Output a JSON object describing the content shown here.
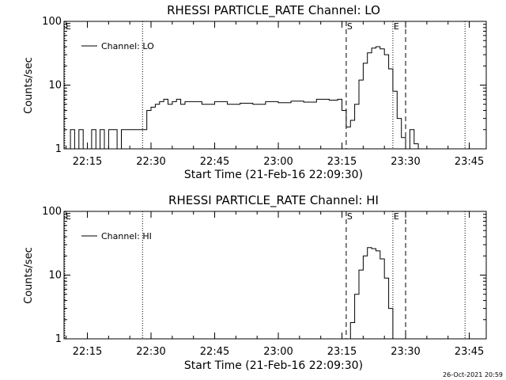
{
  "footer_stamp": "26-Oct-2021 20:59",
  "chart_data": [
    {
      "type": "line",
      "title": "RHESSI PARTICLE_RATE Channel: LO",
      "xlabel": "Start Time (21-Feb-16 22:09:30)",
      "ylabel": "Counts/sec",
      "yscale": "log",
      "ylim": [
        1,
        100
      ],
      "xlim_minutes": [
        22.15,
        23.8
      ],
      "x_tick_labels": [
        "22:15",
        "22:30",
        "22:45",
        "23:00",
        "23:15",
        "23:30",
        "23:45"
      ],
      "y_tick_labels": [
        "1",
        "10",
        "100"
      ],
      "legend": {
        "label": "Channel: LO",
        "position": "top-left"
      },
      "markers": [
        {
          "label": "E",
          "time": "22:09",
          "style": "dotted"
        },
        {
          "label": "",
          "time": "22:28",
          "style": "dotted"
        },
        {
          "label": "S",
          "time": "23:16",
          "style": "dashed"
        },
        {
          "label": "E",
          "time": "23:27",
          "style": "dotted"
        },
        {
          "label": "",
          "time": "23:30",
          "style": "dashed"
        },
        {
          "label": "",
          "time": "23:44",
          "style": "dotted"
        }
      ],
      "series": [
        {
          "name": "Channel: LO",
          "x": [
            "22:10",
            "22:11",
            "22:12",
            "22:13",
            "22:14",
            "22:15",
            "22:16",
            "22:17",
            "22:18",
            "22:19",
            "22:20",
            "22:21",
            "22:22",
            "22:23",
            "22:24",
            "22:25",
            "22:26",
            "22:27",
            "22:28",
            "22:29",
            "22:30",
            "22:31",
            "22:32",
            "22:33",
            "22:34",
            "22:35",
            "22:36",
            "22:37",
            "22:38",
            "22:40",
            "22:42",
            "22:45",
            "22:48",
            "22:51",
            "22:54",
            "22:57",
            "23:00",
            "23:03",
            "23:06",
            "23:09",
            "23:12",
            "23:14",
            "23:15",
            "23:16",
            "23:17",
            "23:18",
            "23:19",
            "23:20",
            "23:21",
            "23:22",
            "23:23",
            "23:24",
            "23:25",
            "23:26",
            "23:27",
            "23:28",
            "23:29",
            "23:30",
            "23:31",
            "23:32",
            "23:33",
            "23:34"
          ],
          "y": [
            1,
            2,
            1,
            2,
            1,
            1,
            2,
            1,
            2,
            1,
            2,
            2,
            1,
            2,
            2,
            2,
            2,
            2,
            2,
            4,
            4.5,
            5,
            5.5,
            6,
            5,
            5.5,
            6,
            5,
            5.5,
            5.5,
            5,
            5.5,
            5,
            5.2,
            5,
            5.5,
            5.3,
            5.6,
            5.4,
            6,
            5.8,
            6,
            4,
            2.2,
            2.8,
            5,
            12,
            22,
            32,
            38,
            40,
            37,
            30,
            18,
            8,
            3,
            1.5,
            1,
            2,
            1.2,
            1,
            1
          ]
        }
      ]
    },
    {
      "type": "line",
      "title": "RHESSI PARTICLE_RATE Channel: HI",
      "xlabel": "Start Time (21-Feb-16 22:09:30)",
      "ylabel": "Counts/sec",
      "yscale": "log",
      "ylim": [
        1,
        100
      ],
      "xlim_minutes": [
        22.15,
        23.8
      ],
      "x_tick_labels": [
        "22:15",
        "22:30",
        "22:45",
        "23:00",
        "23:15",
        "23:30",
        "23:45"
      ],
      "y_tick_labels": [
        "1",
        "10",
        "100"
      ],
      "legend": {
        "label": "Channel: HI",
        "position": "top-left"
      },
      "markers": [
        {
          "label": "E",
          "time": "22:09",
          "style": "dotted"
        },
        {
          "label": "",
          "time": "22:28",
          "style": "dotted"
        },
        {
          "label": "S",
          "time": "23:16",
          "style": "dashed"
        },
        {
          "label": "E",
          "time": "23:27",
          "style": "dotted"
        },
        {
          "label": "",
          "time": "23:30",
          "style": "dashed"
        },
        {
          "label": "",
          "time": "23:44",
          "style": "dotted"
        }
      ],
      "series": [
        {
          "name": "Channel: HI",
          "x": [
            "23:16",
            "23:17",
            "23:18",
            "23:19",
            "23:20",
            "23:21",
            "23:22",
            "23:23",
            "23:24",
            "23:25",
            "23:26",
            "23:27"
          ],
          "y": [
            1,
            1.8,
            5,
            12,
            20,
            27,
            26,
            24,
            18,
            9,
            3,
            1
          ]
        }
      ]
    }
  ]
}
